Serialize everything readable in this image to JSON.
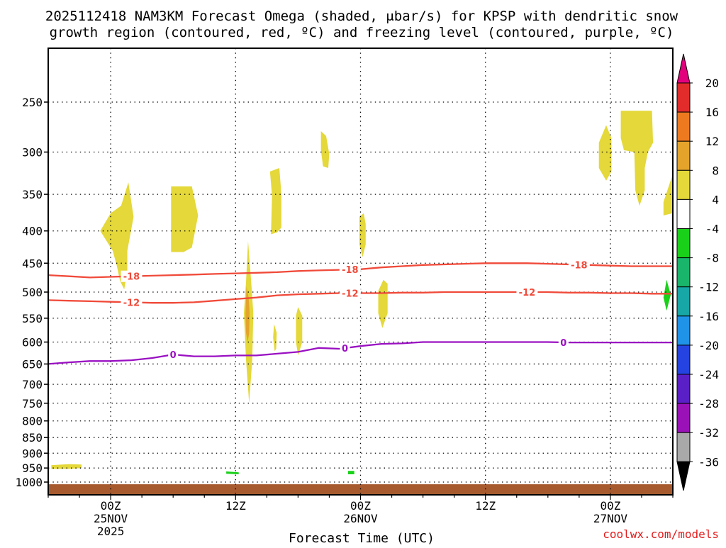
{
  "chart_data": {
    "type": "time-height cross section",
    "title_line1": "2025112418 NAM3KM Forecast Omega (shaded, μbar/s) for KPSP with dendritic snow",
    "title_line2": "growth region (contoured, red, ºC) and freezing level (contoured, purple, ºC)",
    "xlabel": "Forecast Time (UTC)",
    "credit": "coolwx.com/models",
    "x_unit": "hours since 2025-11-24 18Z",
    "xlim": [
      0,
      60
    ],
    "ylim_hpa": [
      1000,
      200
    ],
    "y_ticks": [
      1000,
      950,
      900,
      850,
      800,
      750,
      700,
      650,
      600,
      550,
      500,
      450,
      400,
      350,
      300,
      250
    ],
    "x_ticks": [
      {
        "h": 6,
        "l1": "00Z",
        "l2": "25NOV",
        "l3": "2025"
      },
      {
        "h": 18,
        "l1": "12Z",
        "l2": "",
        "l3": ""
      },
      {
        "h": 30,
        "l1": "00Z",
        "l2": "26NOV",
        "l3": ""
      },
      {
        "h": 42,
        "l1": "12Z",
        "l2": "",
        "l3": ""
      },
      {
        "h": 54,
        "l1": "00Z",
        "l2": "27NOV",
        "l3": ""
      }
    ],
    "colorbar": {
      "labels": [
        "20",
        "16",
        "12",
        "8",
        "4",
        "-4",
        "-8",
        "-12",
        "-16",
        "-20",
        "-24",
        "-28",
        "-32",
        "-36"
      ],
      "top_arrow": "#e3007d",
      "bottom_arrow": "#000000",
      "colors": [
        "#e22b2b",
        "#ee7a20",
        "#e4a42b",
        "#e4d83a",
        "#ffffff",
        "#1ad11a",
        "#19b56b",
        "#17a7a7",
        "#1f93e8",
        "#2443e0",
        "#5a1fc6",
        "#9a11b8",
        "#a9a9a9"
      ]
    },
    "contours": [
      {
        "name": "-18",
        "color": "#f04a3a",
        "label_at": [
          8,
          29,
          51
        ],
        "x": [
          0,
          2,
          4,
          6,
          8,
          10,
          12,
          14,
          16,
          18,
          20,
          22,
          24,
          26,
          28,
          30,
          32,
          34,
          36,
          38,
          40,
          42,
          44,
          46,
          48,
          50,
          52,
          54,
          56,
          58,
          60
        ],
        "p": [
          470,
          472,
          474,
          473,
          472,
          471,
          470,
          469,
          468,
          467,
          466,
          465,
          463,
          462,
          461,
          460,
          457,
          455,
          453,
          452,
          451,
          450,
          450,
          450,
          451,
          452,
          453,
          454,
          455,
          455,
          455
        ]
      },
      {
        "name": "-12",
        "color": "#f04a3a",
        "label_at": [
          8,
          29,
          46
        ],
        "x": [
          0,
          2,
          4,
          6,
          8,
          10,
          12,
          14,
          16,
          18,
          20,
          22,
          24,
          26,
          28,
          30,
          32,
          34,
          36,
          38,
          40,
          42,
          44,
          46,
          48,
          50,
          52,
          54,
          56,
          58,
          60
        ],
        "p": [
          515,
          516,
          517,
          518,
          519,
          520,
          520,
          519,
          516,
          513,
          510,
          506,
          504,
          503,
          502,
          502,
          502,
          501,
          501,
          500,
          500,
          500,
          500,
          500,
          500,
          501,
          501,
          502,
          502,
          503,
          503
        ]
      },
      {
        "name": "0",
        "color": "#9a10c2",
        "label_at": [
          12,
          28.5,
          49.5
        ],
        "x": [
          0,
          2,
          4,
          6,
          8,
          10,
          12,
          14,
          16,
          18,
          20,
          22,
          24,
          26,
          28,
          30,
          32,
          34,
          36,
          38,
          40,
          42,
          44,
          46,
          48,
          50,
          52,
          54,
          56,
          58,
          60
        ],
        "p": [
          650,
          646,
          643,
          643,
          641,
          636,
          628,
          632,
          632,
          630,
          630,
          626,
          622,
          613,
          615,
          609,
          604,
          603,
          600,
          600,
          600,
          600,
          600,
          600,
          600,
          601,
          601,
          601,
          601,
          601,
          601
        ]
      }
    ],
    "omega_regions": [
      {
        "value": "4 to 8",
        "color": "#e4d83a",
        "points": [
          [
            5,
            400
          ],
          [
            6,
            375
          ],
          [
            7,
            365
          ],
          [
            7.7,
            335
          ],
          [
            8.2,
            380
          ],
          [
            7.6,
            430
          ],
          [
            7.6,
            465
          ],
          [
            7.3,
            495
          ],
          [
            6.9,
            480
          ],
          [
            6.6,
            455
          ],
          [
            6.2,
            430
          ]
        ]
      },
      {
        "value": "4 to 8",
        "color": "#e4d83a",
        "points": [
          [
            11.8,
            340
          ],
          [
            13.8,
            340
          ],
          [
            14.4,
            378
          ],
          [
            13.8,
            425
          ],
          [
            13.0,
            432
          ],
          [
            11.8,
            432
          ]
        ]
      },
      {
        "value": "4 to 8",
        "color": "#e4d83a",
        "points": [
          [
            19.2,
            415
          ],
          [
            19.5,
            482
          ],
          [
            19.7,
            540
          ],
          [
            19.6,
            640
          ],
          [
            19.3,
            750
          ],
          [
            19.0,
            640
          ],
          [
            18.8,
            540
          ],
          [
            19.0,
            482
          ]
        ]
      },
      {
        "value": "8 to 12",
        "color": "#e4a42b",
        "points": [
          [
            19.05,
            490
          ],
          [
            19.25,
            510
          ],
          [
            19.35,
            540
          ],
          [
            19.3,
            582
          ],
          [
            19.15,
            600
          ],
          [
            19.0,
            580
          ],
          [
            18.95,
            540
          ]
        ]
      },
      {
        "value": "4 to 8",
        "color": "#e4d83a",
        "points": [
          [
            21.3,
            322
          ],
          [
            22.2,
            318
          ],
          [
            22.4,
            350
          ],
          [
            22.4,
            395
          ],
          [
            22.0,
            402
          ],
          [
            21.4,
            405
          ],
          [
            21.5,
            352
          ]
        ]
      },
      {
        "value": "4 to 8",
        "color": "#e4d83a",
        "points": [
          [
            21.7,
            562
          ],
          [
            21.95,
            580
          ],
          [
            21.9,
            615
          ],
          [
            21.75,
            620
          ],
          [
            21.6,
            590
          ]
        ]
      },
      {
        "value": "4 to 8",
        "color": "#e4d83a",
        "points": [
          [
            23.8,
            545
          ],
          [
            24.0,
            528
          ],
          [
            24.4,
            545
          ],
          [
            24.4,
            600
          ],
          [
            24.0,
            630
          ],
          [
            23.8,
            600
          ]
        ]
      },
      {
        "value": "4 to 8",
        "color": "#e4d83a",
        "points": [
          [
            26.2,
            278
          ],
          [
            26.7,
            283
          ],
          [
            27.0,
            302
          ],
          [
            26.9,
            318
          ],
          [
            26.4,
            316
          ],
          [
            26.2,
            298
          ]
        ]
      },
      {
        "value": "4 to 8",
        "color": "#e4d83a",
        "points": [
          [
            29.9,
            380
          ],
          [
            30.3,
            375
          ],
          [
            30.5,
            390
          ],
          [
            30.5,
            420
          ],
          [
            30.2,
            440
          ],
          [
            29.9,
            420
          ]
        ]
      },
      {
        "value": "4 to 8",
        "color": "#e4d83a",
        "points": [
          [
            31.7,
            498
          ],
          [
            32.2,
            478
          ],
          [
            32.6,
            485
          ],
          [
            32.6,
            540
          ],
          [
            32.1,
            570
          ],
          [
            31.7,
            540
          ]
        ]
      },
      {
        "value": "4 to 8",
        "color": "#e4d83a",
        "points": [
          [
            52.9,
            290
          ],
          [
            53.6,
            272
          ],
          [
            54.1,
            285
          ],
          [
            54.1,
            322
          ],
          [
            53.6,
            333
          ],
          [
            52.9,
            318
          ]
        ]
      },
      {
        "value": "4 to 8",
        "color": "#e4d83a",
        "points": [
          [
            55.0,
            258
          ],
          [
            58.0,
            258
          ],
          [
            58.1,
            290
          ],
          [
            57.6,
            300
          ],
          [
            57.3,
            318
          ],
          [
            57.3,
            345
          ],
          [
            56.8,
            365
          ],
          [
            56.4,
            345
          ],
          [
            56.3,
            300
          ],
          [
            55.3,
            298
          ],
          [
            55.0,
            285
          ]
        ]
      },
      {
        "value": "4 to 8",
        "color": "#e4d83a",
        "points": [
          [
            59.1,
            360
          ],
          [
            60.0,
            325
          ],
          [
            60.0,
            375
          ],
          [
            59.1,
            378
          ]
        ]
      },
      {
        "value": "4 to 8",
        "color": "#e4d83a",
        "points": [
          [
            0.3,
            940
          ],
          [
            2.0,
            937
          ],
          [
            3.2,
            938
          ],
          [
            3.2,
            950
          ],
          [
            2.0,
            953
          ],
          [
            0.3,
            953
          ]
        ]
      },
      {
        "value": "-4 to -8",
        "color": "#1ad11a",
        "points": [
          [
            59.1,
            510
          ],
          [
            59.4,
            478
          ],
          [
            59.8,
            505
          ],
          [
            59.4,
            535
          ]
        ]
      },
      {
        "value": "-4 to -8",
        "color": "#1ad11a",
        "points": [
          [
            17.1,
            962
          ],
          [
            18.3,
            965
          ],
          [
            18.3,
            972
          ],
          [
            17.1,
            970
          ]
        ]
      },
      {
        "value": "-4 to -8",
        "color": "#1ad11a",
        "points": [
          [
            28.8,
            960
          ],
          [
            29.4,
            960
          ],
          [
            29.4,
            972
          ],
          [
            28.8,
            972
          ]
        ]
      }
    ],
    "ground": {
      "color": "#a65a2e",
      "top_hpa": 1008
    }
  }
}
